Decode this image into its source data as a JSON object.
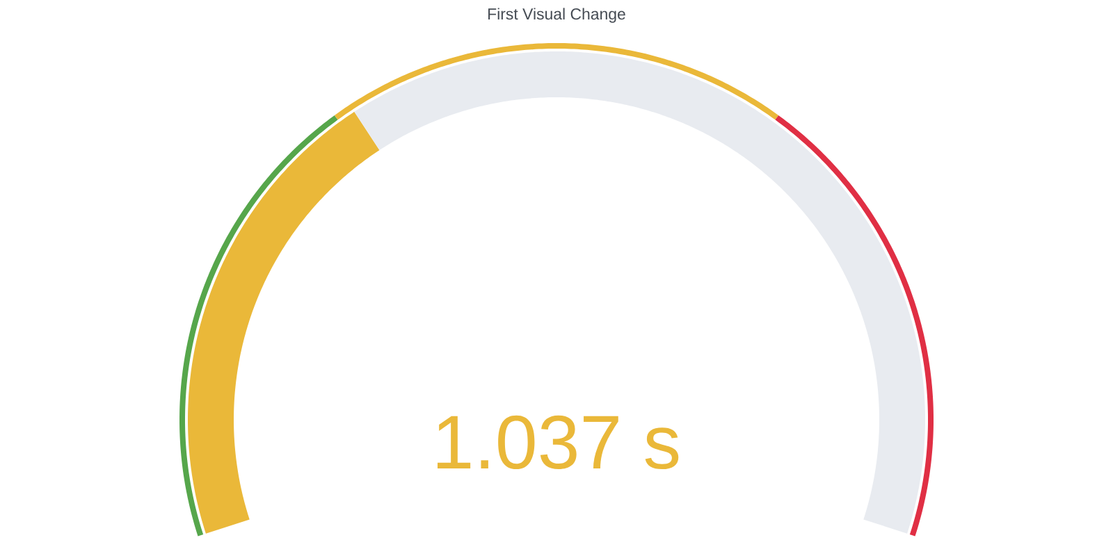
{
  "chart_data": [
    {
      "type": "donut",
      "title": "First Visual Change",
      "categories": [
        null,
        null
      ],
      "values": [
        34.6,
        65.4
      ],
      "colors": [
        "#eab839",
        "#e8ebf0"
      ],
      "annotations": [
        "1.037 s"
      ]
    },
    {
      "type": "donut",
      "categories": [
        null,
        null,
        null
      ],
      "values": [
        33.3,
        33.4,
        33.3
      ],
      "colors": [
        "#56a64b",
        "#eab839",
        "#e02f44"
      ]
    }
  ]
}
